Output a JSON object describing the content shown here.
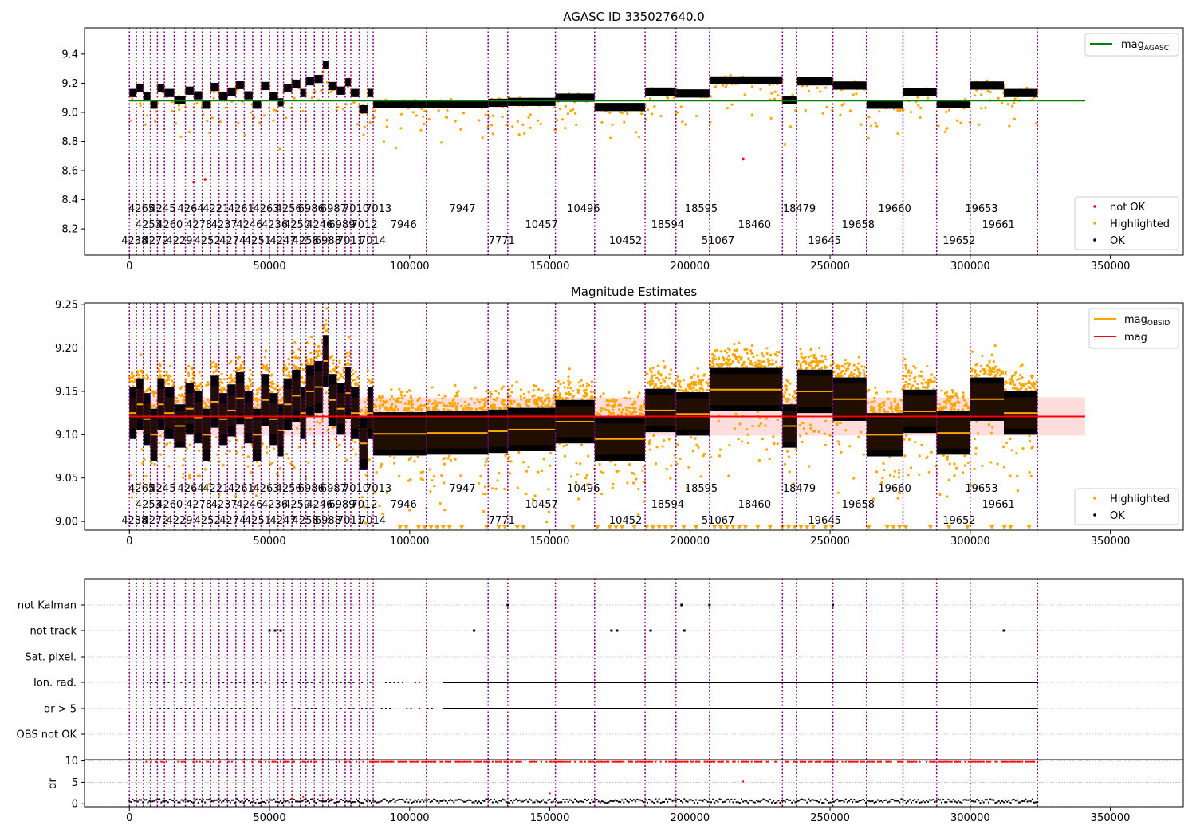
{
  "chart_data": [
    {
      "type": "scatter",
      "title": "AGASC ID 335027640.0",
      "xlim": [
        -16000,
        376000
      ],
      "ylim": [
        8.02,
        9.58
      ],
      "xticks": [
        0,
        50000,
        100000,
        150000,
        200000,
        250000,
        300000,
        350000
      ],
      "yticks": [
        8.2,
        8.4,
        8.6,
        8.8,
        9.0,
        9.2,
        9.4
      ],
      "legend_top": {
        "position": "top-right",
        "entries": [
          {
            "name": "mag",
            "sub": "AGASC",
            "color": "#008000"
          }
        ]
      },
      "legend_bottom": {
        "position": "bottom-right",
        "entries": [
          {
            "name": "not OK",
            "color": "#ff0000"
          },
          {
            "name": "Highlighted",
            "color": "#ffa500"
          },
          {
            "name": "OK",
            "color": "#000000"
          }
        ]
      },
      "mag_agasc": 9.08,
      "obs_labels": [
        {
          "x": 0,
          "text": "4238",
          "row": 0
        },
        {
          "x": 2500,
          "text": "4265",
          "row": 2
        },
        {
          "x": 5000,
          "text": "4253",
          "row": 1
        },
        {
          "x": 7500,
          "text": "4272",
          "row": 0
        },
        {
          "x": 10000,
          "text": "4245",
          "row": 2
        },
        {
          "x": 12500,
          "text": "4260",
          "row": 1
        },
        {
          "x": 16000,
          "text": "4229",
          "row": 0
        },
        {
          "x": 20000,
          "text": "4264",
          "row": 2
        },
        {
          "x": 23000,
          "text": "4278",
          "row": 1
        },
        {
          "x": 26000,
          "text": "4252",
          "row": 0
        },
        {
          "x": 29000,
          "text": "4221",
          "row": 2
        },
        {
          "x": 32000,
          "text": "4237",
          "row": 1
        },
        {
          "x": 35000,
          "text": "4274",
          "row": 0
        },
        {
          "x": 38000,
          "text": "4261",
          "row": 2
        },
        {
          "x": 41000,
          "text": "4246",
          "row": 1
        },
        {
          "x": 44000,
          "text": "4251",
          "row": 0
        },
        {
          "x": 47000,
          "text": "4263",
          "row": 2
        },
        {
          "x": 50000,
          "text": "4236",
          "row": 1
        },
        {
          "x": 53000,
          "text": "4247",
          "row": 0
        },
        {
          "x": 55000,
          "text": "4256",
          "row": 2
        },
        {
          "x": 58000,
          "text": "4250",
          "row": 1
        },
        {
          "x": 61000,
          "text": "4258",
          "row": 0
        },
        {
          "x": 63000,
          "text": "6986",
          "row": 2
        },
        {
          "x": 66000,
          "text": "4246",
          "row": 1
        },
        {
          "x": 69000,
          "text": "6988",
          "row": 0
        },
        {
          "x": 71000,
          "text": "6987",
          "row": 2
        },
        {
          "x": 74000,
          "text": "6989",
          "row": 1
        },
        {
          "x": 77000,
          "text": "7011",
          "row": 0
        },
        {
          "x": 79000,
          "text": "7010",
          "row": 2
        },
        {
          "x": 82000,
          "text": "7012",
          "row": 1
        },
        {
          "x": 85000,
          "text": "7014",
          "row": 0
        },
        {
          "x": 87000,
          "text": "7013",
          "row": 2
        },
        {
          "x": 96000,
          "text": "7946",
          "row": 1
        },
        {
          "x": 117000,
          "text": "7947",
          "row": 2
        },
        {
          "x": 131000,
          "text": "7771",
          "row": 0
        },
        {
          "x": 144000,
          "text": "10457",
          "row": 1
        },
        {
          "x": 159000,
          "text": "10496",
          "row": 2
        },
        {
          "x": 174000,
          "text": "10452",
          "row": 0
        },
        {
          "x": 189000,
          "text": "18594",
          "row": 1
        },
        {
          "x": 201000,
          "text": "18595",
          "row": 2
        },
        {
          "x": 207000,
          "text": "51067",
          "row": 0
        },
        {
          "x": 220000,
          "text": "18460",
          "row": 1
        },
        {
          "x": 236000,
          "text": "18479",
          "row": 2
        },
        {
          "x": 245000,
          "text": "19645",
          "row": 0
        },
        {
          "x": 257000,
          "text": "19658",
          "row": 1
        },
        {
          "x": 270000,
          "text": "19660",
          "row": 2
        },
        {
          "x": 293000,
          "text": "19652",
          "row": 0
        },
        {
          "x": 301000,
          "text": "19653",
          "row": 2
        },
        {
          "x": 307000,
          "text": "19661",
          "row": 1
        }
      ]
    },
    {
      "type": "scatter",
      "title": "Magnitude Estimates",
      "xlim": [
        -16000,
        376000
      ],
      "ylim": [
        8.99,
        9.252
      ],
      "xticks": [
        0,
        50000,
        100000,
        150000,
        200000,
        250000,
        300000,
        350000
      ],
      "yticks": [
        9.0,
        9.05,
        9.1,
        9.15,
        9.2,
        9.25
      ],
      "legend_top": {
        "position": "top-right",
        "entries": [
          {
            "name": "mag",
            "sub": "OBSID",
            "color": "#ffa500"
          },
          {
            "name": "mag",
            "sub": "",
            "color": "#ff0000"
          }
        ]
      },
      "legend_bottom": {
        "position": "bottom-right",
        "entries": [
          {
            "name": "Highlighted",
            "color": "#ffa500"
          },
          {
            "name": "OK",
            "color": "#000000"
          }
        ]
      },
      "mag": 9.121,
      "mag_band": [
        9.099,
        9.143
      ],
      "segments": [
        {
          "x0": 0,
          "x1": 2500,
          "mean": 9.125
        },
        {
          "x0": 2500,
          "x1": 5000,
          "mean": 9.135
        },
        {
          "x0": 5000,
          "x1": 7500,
          "mean": 9.118
        },
        {
          "x0": 7500,
          "x1": 10000,
          "mean": 9.1
        },
        {
          "x0": 10000,
          "x1": 12500,
          "mean": 9.135
        },
        {
          "x0": 12500,
          "x1": 16000,
          "mean": 9.125
        },
        {
          "x0": 16000,
          "x1": 20000,
          "mean": 9.11
        },
        {
          "x0": 20000,
          "x1": 23000,
          "mean": 9.13
        },
        {
          "x0": 23000,
          "x1": 26000,
          "mean": 9.12
        },
        {
          "x0": 26000,
          "x1": 29000,
          "mean": 9.1
        },
        {
          "x0": 29000,
          "x1": 32000,
          "mean": 9.138
        },
        {
          "x0": 32000,
          "x1": 35000,
          "mean": 9.118
        },
        {
          "x0": 35000,
          "x1": 38000,
          "mean": 9.128
        },
        {
          "x0": 38000,
          "x1": 41000,
          "mean": 9.142
        },
        {
          "x0": 41000,
          "x1": 44000,
          "mean": 9.12
        },
        {
          "x0": 44000,
          "x1": 47000,
          "mean": 9.1
        },
        {
          "x0": 47000,
          "x1": 50000,
          "mean": 9.14
        },
        {
          "x0": 50000,
          "x1": 53000,
          "mean": 9.118
        },
        {
          "x0": 53000,
          "x1": 55000,
          "mean": 9.105
        },
        {
          "x0": 55000,
          "x1": 58000,
          "mean": 9.135
        },
        {
          "x0": 58000,
          "x1": 61000,
          "mean": 9.145
        },
        {
          "x0": 61000,
          "x1": 63000,
          "mean": 9.125
        },
        {
          "x0": 63000,
          "x1": 66000,
          "mean": 9.15
        },
        {
          "x0": 66000,
          "x1": 69000,
          "mean": 9.155
        },
        {
          "x0": 69000,
          "x1": 71000,
          "mean": 9.185
        },
        {
          "x0": 71000,
          "x1": 74000,
          "mean": 9.14
        },
        {
          "x0": 74000,
          "x1": 77000,
          "mean": 9.13
        },
        {
          "x0": 77000,
          "x1": 79000,
          "mean": 9.148
        },
        {
          "x0": 79000,
          "x1": 82000,
          "mean": 9.125
        },
        {
          "x0": 82000,
          "x1": 85000,
          "mean": 9.09
        },
        {
          "x0": 85000,
          "x1": 87000,
          "mean": 9.125
        },
        {
          "x0": 87000,
          "x1": 106000,
          "mean": 9.101
        },
        {
          "x0": 106000,
          "x1": 128000,
          "mean": 9.102
        },
        {
          "x0": 128000,
          "x1": 135000,
          "mean": 9.104
        },
        {
          "x0": 135000,
          "x1": 152000,
          "mean": 9.106
        },
        {
          "x0": 152000,
          "x1": 166000,
          "mean": 9.115
        },
        {
          "x0": 166000,
          "x1": 184000,
          "mean": 9.095
        },
        {
          "x0": 184000,
          "x1": 195000,
          "mean": 9.128
        },
        {
          "x0": 195000,
          "x1": 207000,
          "mean": 9.124
        },
        {
          "x0": 207000,
          "x1": 233000,
          "mean": 9.152
        },
        {
          "x0": 233000,
          "x1": 238000,
          "mean": 9.11
        },
        {
          "x0": 238000,
          "x1": 251000,
          "mean": 9.15
        },
        {
          "x0": 251000,
          "x1": 263000,
          "mean": 9.141
        },
        {
          "x0": 263000,
          "x1": 276000,
          "mean": 9.1
        },
        {
          "x0": 276000,
          "x1": 288000,
          "mean": 9.127
        },
        {
          "x0": 288000,
          "x1": 300000,
          "mean": 9.102
        },
        {
          "x0": 300000,
          "x1": 312000,
          "mean": 9.141
        },
        {
          "x0": 312000,
          "x1": 324000,
          "mean": 9.125
        }
      ]
    },
    {
      "type": "scatter",
      "xlim": [
        -16000,
        376000
      ],
      "xticks": [
        0,
        50000,
        100000,
        150000,
        200000,
        250000,
        300000,
        350000
      ],
      "flag_rows": [
        "not Kalman",
        "not track",
        "Sat. pixel.",
        "Ion. rad.",
        "dr > 5",
        "OBS not OK"
      ],
      "flag_points": {
        "not Kalman": [
          135000,
          197000,
          207000,
          251000
        ],
        "not track": [
          50000,
          52000,
          54000,
          123000,
          172000,
          174000,
          186000,
          198000,
          312000
        ],
        "Sat. pixel.": [],
        "Ion. rad.": [
          [
            5000,
            87000,
            "sparse"
          ],
          [
            90000,
            108000,
            "sparse"
          ],
          [
            112000,
            324000,
            "dense"
          ]
        ],
        "dr > 5": [
          [
            5000,
            87000,
            "sparse"
          ],
          [
            90000,
            108000,
            "sparse"
          ],
          [
            112000,
            324000,
            "dense"
          ]
        ],
        "OBS not OK": []
      },
      "dr_ylabel": "dr",
      "dr_yticks": [
        0,
        5,
        10
      ],
      "dr_ylim": [
        -0.7,
        10.3
      ]
    }
  ],
  "obs_boundaries": [
    0,
    2500,
    5000,
    7500,
    10000,
    12500,
    16000,
    20000,
    23000,
    26000,
    29000,
    32000,
    35000,
    38000,
    41000,
    44000,
    47000,
    50000,
    53000,
    55000,
    58000,
    61000,
    63000,
    66000,
    69000,
    71000,
    74000,
    77000,
    79000,
    82000,
    85000,
    87000,
    106000,
    128000,
    135000,
    152000,
    166000,
    184000,
    195000,
    207000,
    233000,
    238000,
    251000,
    263000,
    276000,
    288000,
    300000,
    324000
  ]
}
